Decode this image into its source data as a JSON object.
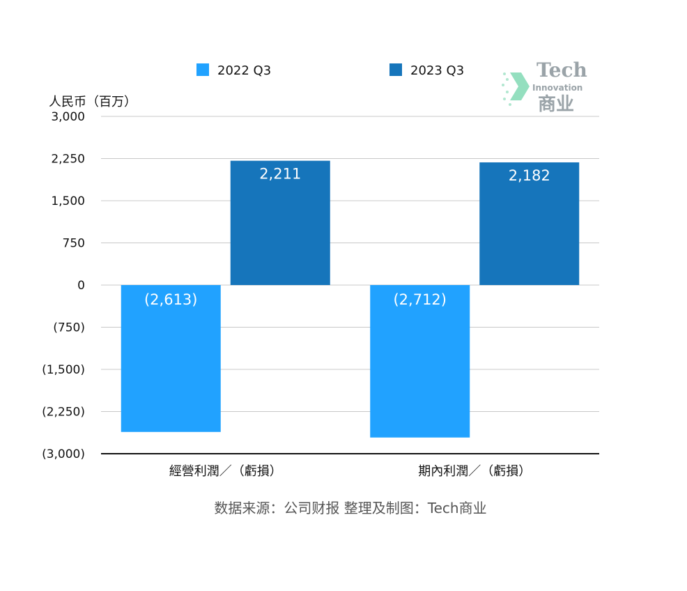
{
  "chart_data": {
    "type": "bar",
    "categories": [
      "經營利潤／（虧損）",
      "期內利潤／（虧損）"
    ],
    "series": [
      {
        "name": "2022 Q3",
        "values": [
          -2613,
          -2712
        ],
        "labels": [
          "(2,613)",
          "(2,712)"
        ],
        "color": "#21a2ff"
      },
      {
        "name": "2023 Q3",
        "values": [
          2211,
          2182
        ],
        "labels": [
          "2,211",
          "2,182"
        ],
        "color": "#1675bb"
      }
    ],
    "ylabel": "人民币（百万）",
    "ylim": [
      -3000,
      3000
    ],
    "yticks": [
      3000,
      2250,
      1500,
      750,
      0,
      -750,
      -1500,
      -2250,
      -3000
    ],
    "ytick_labels": [
      "3,000",
      "2,250",
      "1,500",
      "750",
      "0",
      "(750)",
      "(1,500)",
      "(2,250)",
      "(3,000)"
    ],
    "grid": true,
    "legend": "top"
  },
  "source_note": "数据来源：公司财报 整理及制图：Tech商业",
  "watermark": {
    "title": "Tech",
    "subtitle": "Innovation",
    "chinese": "商业",
    "accent_color": "#3cc48a"
  }
}
